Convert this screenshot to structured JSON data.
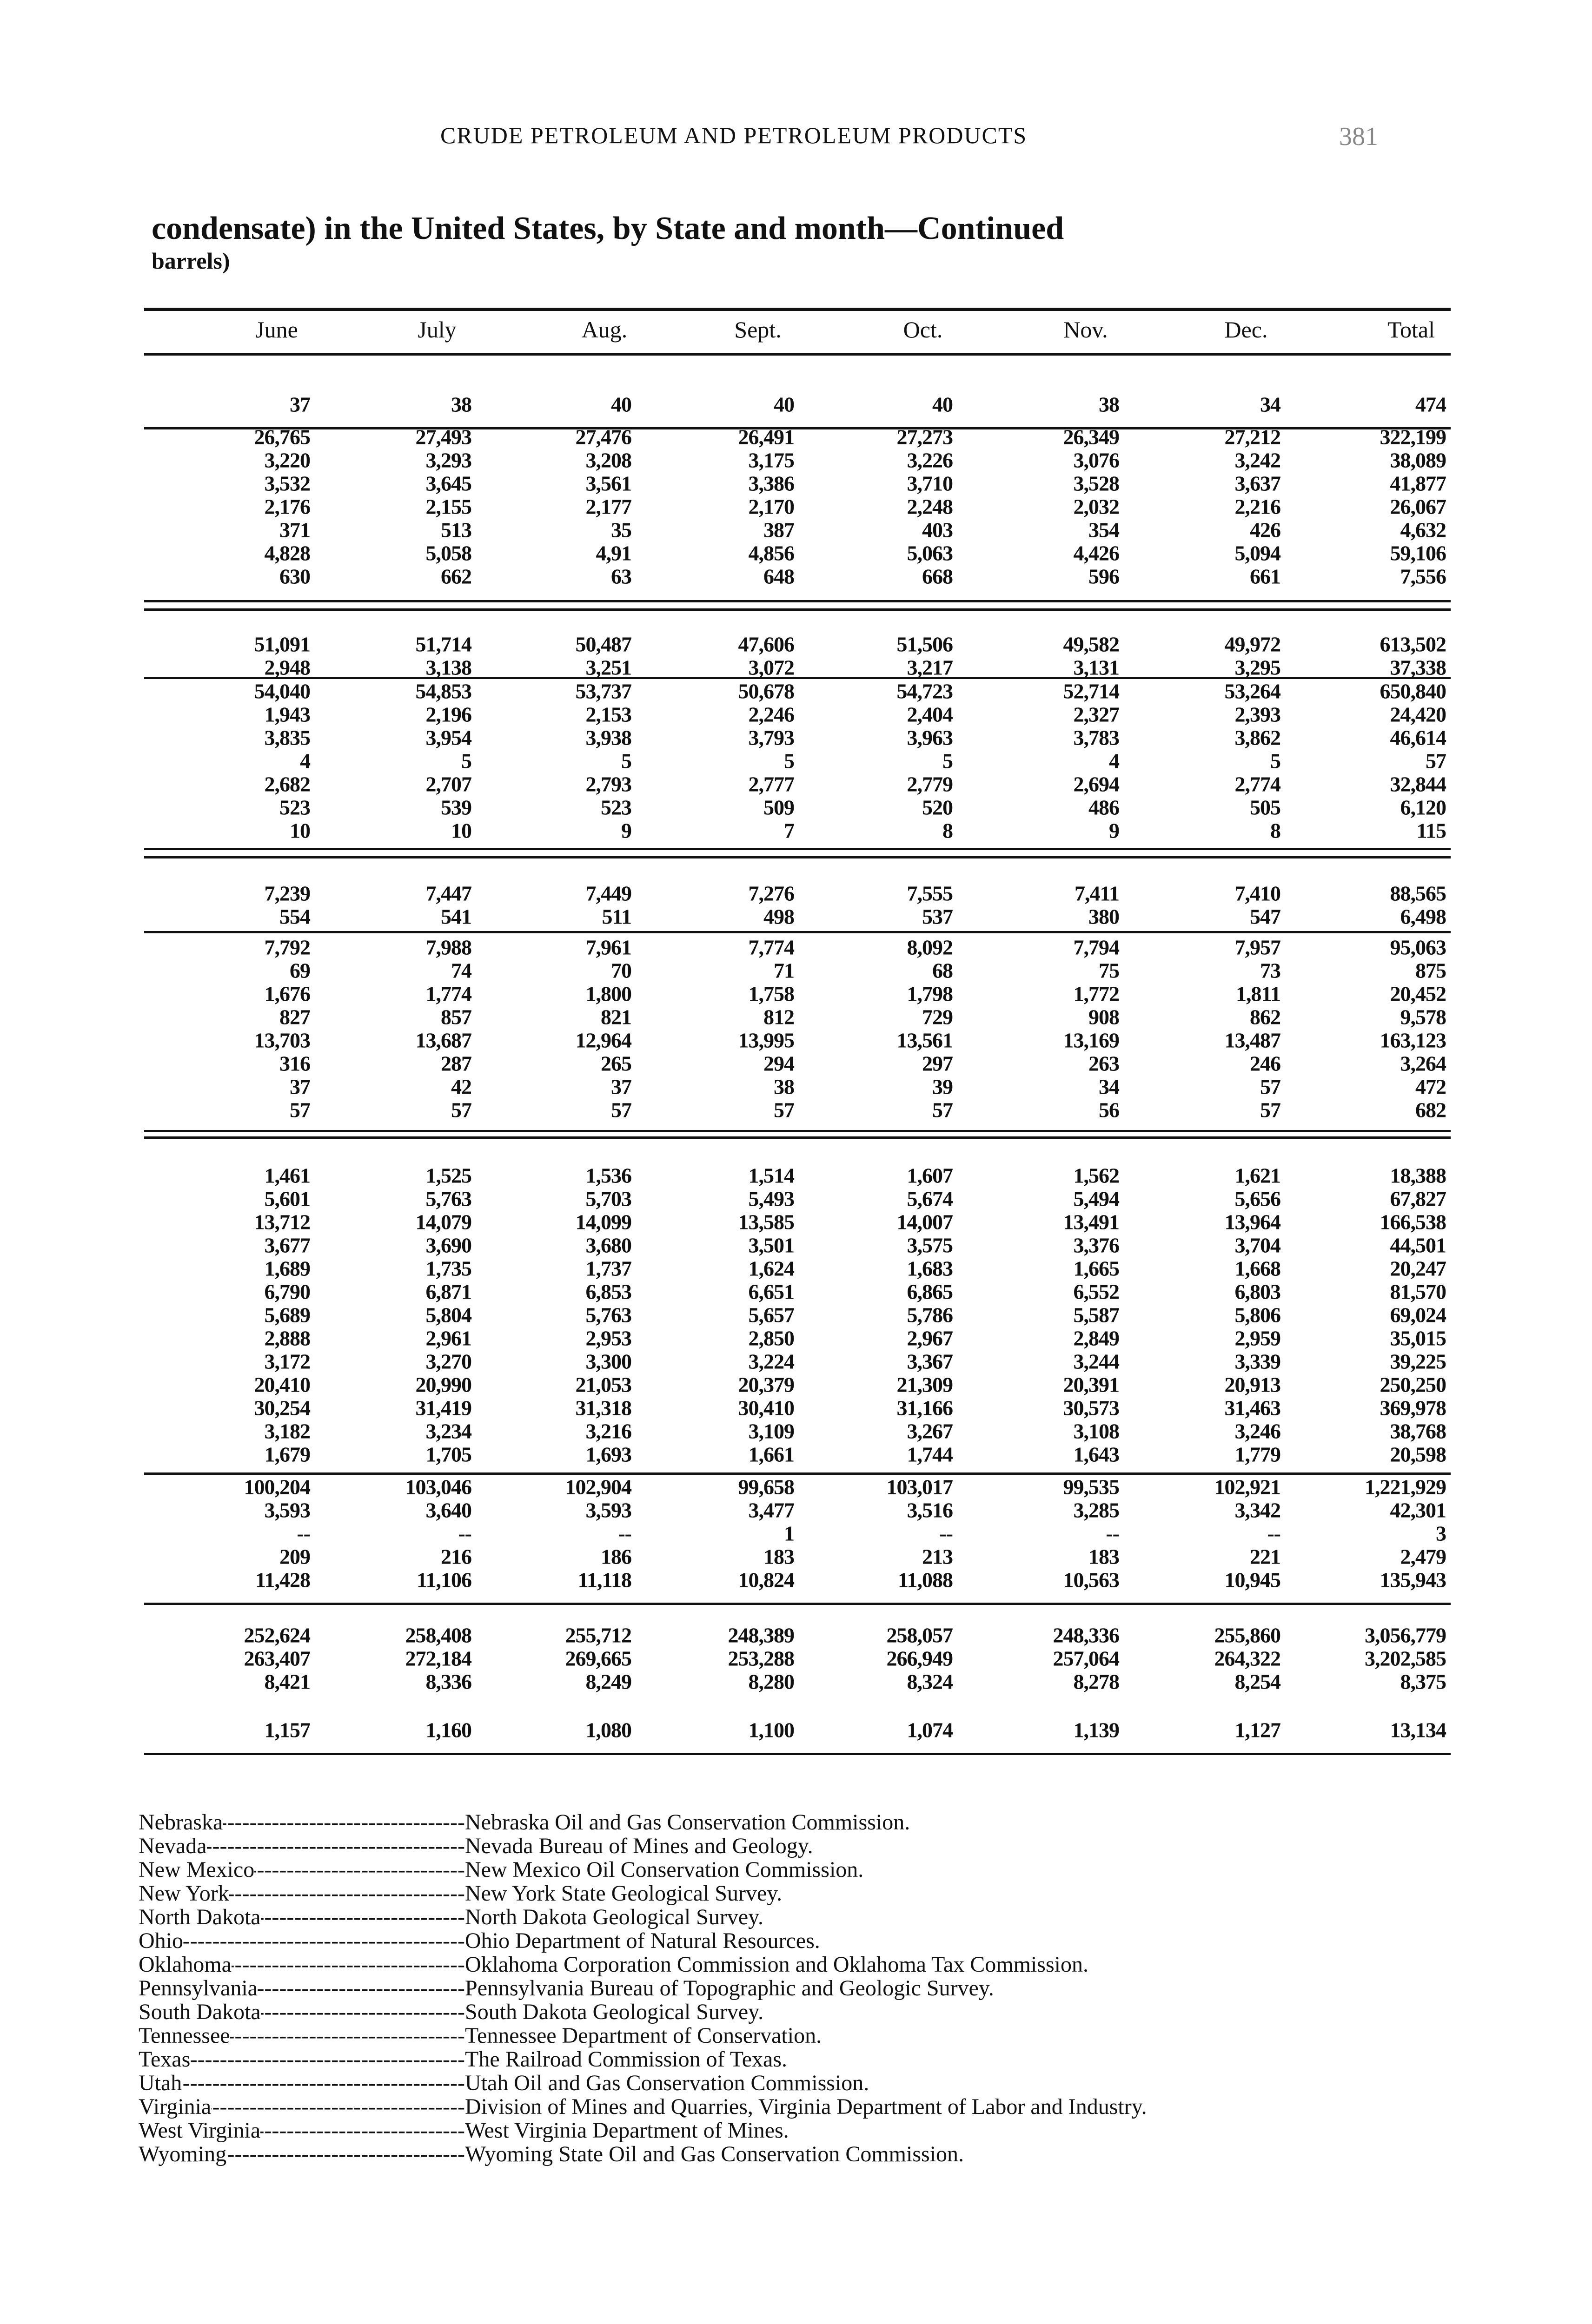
{
  "running_head": "CRUDE PETROLEUM AND PETROLEUM PRODUCTS",
  "page_number": "381",
  "title": "condensate) in the United States, by State and month—Continued",
  "subtitle": "barrels)",
  "table": {
    "columns": [
      "June",
      "July",
      "Aug.",
      "Sept.",
      "Oct.",
      "Nov.",
      "Dec.",
      "Total"
    ],
    "groups": [
      [
        [
          "37",
          "38",
          "40",
          "40",
          "40",
          "38",
          "34",
          "474"
        ]
      ],
      [
        [
          "26,765",
          "27,493",
          "27,476",
          "26,491",
          "27,273",
          "26,349",
          "27,212",
          "322,199"
        ],
        [
          "3,220",
          "3,293",
          "3,208",
          "3,175",
          "3,226",
          "3,076",
          "3,242",
          "38,089"
        ],
        [
          "3,532",
          "3,645",
          "3,561",
          "3,386",
          "3,710",
          "3,528",
          "3,637",
          "41,877"
        ],
        [
          "2,176",
          "2,155",
          "2,177",
          "2,170",
          "2,248",
          "2,032",
          "2,216",
          "26,067"
        ],
        [
          "371",
          "513",
          "35",
          "387",
          "403",
          "354",
          "426",
          "4,632"
        ],
        [
          "4,828",
          "5,058",
          "4,91",
          "4,856",
          "5,063",
          "4,426",
          "5,094",
          "59,106"
        ],
        [
          "630",
          "662",
          "63",
          "648",
          "668",
          "596",
          "661",
          "7,556"
        ]
      ],
      [
        [
          "51,091",
          "51,714",
          "50,487",
          "47,606",
          "51,506",
          "49,582",
          "49,972",
          "613,502"
        ],
        [
          "2,948",
          "3,138",
          "3,251",
          "3,072",
          "3,217",
          "3,131",
          "3,295",
          "37,338"
        ]
      ],
      [
        [
          "54,040",
          "54,853",
          "53,737",
          "50,678",
          "54,723",
          "52,714",
          "53,264",
          "650,840"
        ],
        [
          "1,943",
          "2,196",
          "2,153",
          "2,246",
          "2,404",
          "2,327",
          "2,393",
          "24,420"
        ],
        [
          "3,835",
          "3,954",
          "3,938",
          "3,793",
          "3,963",
          "3,783",
          "3,862",
          "46,614"
        ],
        [
          "4",
          "5",
          "5",
          "5",
          "5",
          "4",
          "5",
          "57"
        ],
        [
          "2,682",
          "2,707",
          "2,793",
          "2,777",
          "2,779",
          "2,694",
          "2,774",
          "32,844"
        ],
        [
          "523",
          "539",
          "523",
          "509",
          "520",
          "486",
          "505",
          "6,120"
        ],
        [
          "10",
          "10",
          "9",
          "7",
          "8",
          "9",
          "8",
          "115"
        ]
      ],
      [
        [
          "7,239",
          "7,447",
          "7,449",
          "7,276",
          "7,555",
          "7,411",
          "7,410",
          "88,565"
        ],
        [
          "554",
          "541",
          "511",
          "498",
          "537",
          "380",
          "547",
          "6,498"
        ]
      ],
      [
        [
          "7,792",
          "7,988",
          "7,961",
          "7,774",
          "8,092",
          "7,794",
          "7,957",
          "95,063"
        ],
        [
          "69",
          "74",
          "70",
          "71",
          "68",
          "75",
          "73",
          "875"
        ],
        [
          "1,676",
          "1,774",
          "1,800",
          "1,758",
          "1,798",
          "1,772",
          "1,811",
          "20,452"
        ],
        [
          "827",
          "857",
          "821",
          "812",
          "729",
          "908",
          "862",
          "9,578"
        ],
        [
          "13,703",
          "13,687",
          "12,964",
          "13,995",
          "13,561",
          "13,169",
          "13,487",
          "163,123"
        ],
        [
          "316",
          "287",
          "265",
          "294",
          "297",
          "263",
          "246",
          "3,264"
        ],
        [
          "37",
          "42",
          "37",
          "38",
          "39",
          "34",
          "57",
          "472"
        ],
        [
          "57",
          "57",
          "57",
          "57",
          "57",
          "56",
          "57",
          "682"
        ]
      ],
      [
        [
          "1,461",
          "1,525",
          "1,536",
          "1,514",
          "1,607",
          "1,562",
          "1,621",
          "18,388"
        ],
        [
          "5,601",
          "5,763",
          "5,703",
          "5,493",
          "5,674",
          "5,494",
          "5,656",
          "67,827"
        ],
        [
          "13,712",
          "14,079",
          "14,099",
          "13,585",
          "14,007",
          "13,491",
          "13,964",
          "166,538"
        ],
        [
          "3,677",
          "3,690",
          "3,680",
          "3,501",
          "3,575",
          "3,376",
          "3,704",
          "44,501"
        ],
        [
          "1,689",
          "1,735",
          "1,737",
          "1,624",
          "1,683",
          "1,665",
          "1,668",
          "20,247"
        ],
        [
          "6,790",
          "6,871",
          "6,853",
          "6,651",
          "6,865",
          "6,552",
          "6,803",
          "81,570"
        ],
        [
          "5,689",
          "5,804",
          "5,763",
          "5,657",
          "5,786",
          "5,587",
          "5,806",
          "69,024"
        ],
        [
          "2,888",
          "2,961",
          "2,953",
          "2,850",
          "2,967",
          "2,849",
          "2,959",
          "35,015"
        ],
        [
          "3,172",
          "3,270",
          "3,300",
          "3,224",
          "3,367",
          "3,244",
          "3,339",
          "39,225"
        ],
        [
          "20,410",
          "20,990",
          "21,053",
          "20,379",
          "21,309",
          "20,391",
          "20,913",
          "250,250"
        ],
        [
          "30,254",
          "31,419",
          "31,318",
          "30,410",
          "31,166",
          "30,573",
          "31,463",
          "369,978"
        ],
        [
          "3,182",
          "3,234",
          "3,216",
          "3,109",
          "3,267",
          "3,108",
          "3,246",
          "38,768"
        ],
        [
          "1,679",
          "1,705",
          "1,693",
          "1,661",
          "1,744",
          "1,643",
          "1,779",
          "20,598"
        ]
      ],
      [
        [
          "100,204",
          "103,046",
          "102,904",
          "99,658",
          "103,017",
          "99,535",
          "102,921",
          "1,221,929"
        ],
        [
          "3,593",
          "3,640",
          "3,593",
          "3,477",
          "3,516",
          "3,285",
          "3,342",
          "42,301"
        ],
        [
          "--",
          "--",
          "--",
          "1",
          "--",
          "--",
          "--",
          "3"
        ],
        [
          "209",
          "216",
          "186",
          "183",
          "213",
          "183",
          "221",
          "2,479"
        ],
        [
          "11,428",
          "11,106",
          "11,118",
          "10,824",
          "11,088",
          "10,563",
          "10,945",
          "135,943"
        ]
      ],
      [
        [
          "252,624",
          "258,408",
          "255,712",
          "248,389",
          "258,057",
          "248,336",
          "255,860",
          "3,056,779"
        ],
        [
          "263,407",
          "272,184",
          "269,665",
          "253,288",
          "266,949",
          "257,064",
          "264,322",
          "3,202,585"
        ],
        [
          "8,421",
          "8,336",
          "8,249",
          "8,280",
          "8,324",
          "8,278",
          "8,254",
          "8,375"
        ],
        [
          "1,157",
          "1,160",
          "1,080",
          "1,100",
          "1,074",
          "1,139",
          "1,127",
          "13,134"
        ]
      ]
    ]
  },
  "footnotes": [
    {
      "state": "Nebraska",
      "agency": "Nebraska Oil and Gas Conservation Commission."
    },
    {
      "state": "Nevada",
      "agency": "Nevada Bureau of Mines and Geology."
    },
    {
      "state": "New Mexico",
      "agency": "New Mexico Oil Conservation Commission."
    },
    {
      "state": "New York",
      "agency": "New York State Geological Survey."
    },
    {
      "state": "North Dakota",
      "agency": "North Dakota Geological Survey."
    },
    {
      "state": "Ohio",
      "agency": "Ohio Department of Natural Resources."
    },
    {
      "state": "Oklahoma",
      "agency": "Oklahoma Corporation Commission and Oklahoma Tax Commission."
    },
    {
      "state": "Pennsylvania",
      "agency": "Pennsylvania Bureau of Topographic and Geologic Survey."
    },
    {
      "state": "South Dakota",
      "agency": "South Dakota Geological Survey."
    },
    {
      "state": "Tennessee",
      "agency": "Tennessee Department of Conservation."
    },
    {
      "state": "Texas",
      "agency": "The Railroad Commission of Texas."
    },
    {
      "state": "Utah",
      "agency": "Utah Oil and Gas Conservation Commission."
    },
    {
      "state": "Virginia",
      "agency": "Division of Mines and Quarries, Virginia Department of Labor and Industry."
    },
    {
      "state": "West Virginia",
      "agency": "West Virginia Department of Mines."
    },
    {
      "state": "Wyoming",
      "agency": "Wyoming State Oil and Gas Conservation Commission."
    }
  ]
}
